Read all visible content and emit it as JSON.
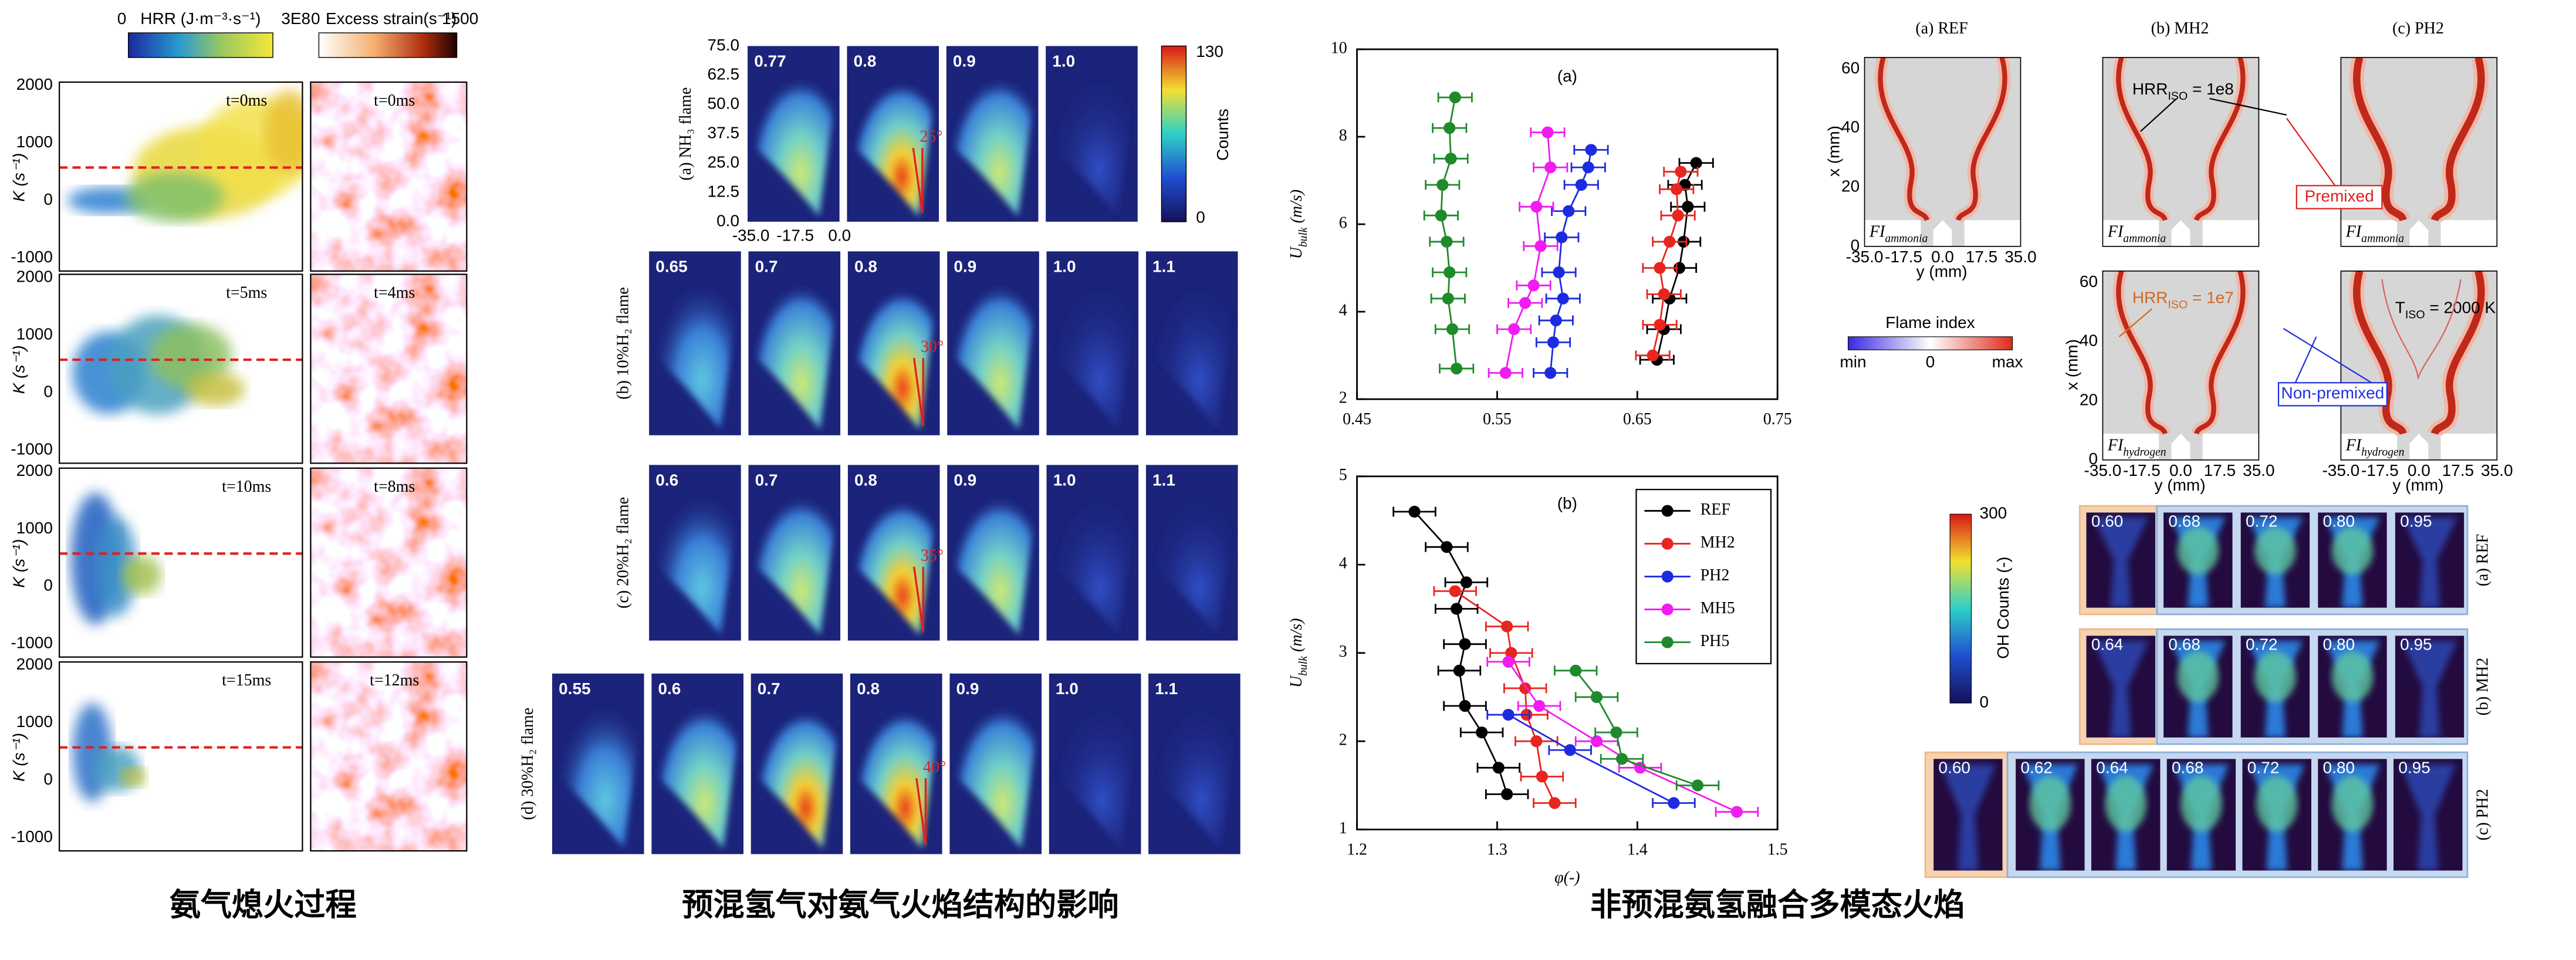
{
  "captions": [
    "氨气熄火过程",
    "预混氢气对氨气火焰结构的影响",
    "非预混氨氢融合多模态火焰"
  ],
  "extinction": {
    "hrr_colorbar": {
      "label": "HRR (J·m⁻³·s⁻¹)",
      "min": "0",
      "max": "3E8"
    },
    "strain_colorbar": {
      "label": "Excess strain(s⁻¹)",
      "min": "0",
      "max": "1500"
    },
    "y_label": "K (s⁻¹)",
    "yticks": [
      "2000",
      "1000",
      "0",
      "-1000"
    ],
    "times_left": [
      "t=0ms",
      "t=5ms",
      "t=10ms",
      "t=15ms"
    ],
    "times_right": [
      "t=0ms",
      "t=4ms",
      "t=8ms",
      "t=12ms"
    ]
  },
  "premixed": {
    "colorbar": {
      "label": "Counts",
      "max": "130",
      "min": "0"
    },
    "axis_yticks": [
      "75.0",
      "62.5",
      "50.0",
      "37.5",
      "25.0",
      "12.5",
      "0.0"
    ],
    "axis_xticks": [
      "-35.0",
      "-17.5",
      "0.0"
    ],
    "rows": [
      {
        "label": "(a)  NH₃ flame",
        "phis": [
          "0.77",
          "0.8",
          "0.9",
          "1.0"
        ],
        "angle": "25°"
      },
      {
        "label": "(b)  10%H₂ flame",
        "phis": [
          "0.65",
          "0.7",
          "0.8",
          "0.9",
          "1.0",
          "1.1"
        ],
        "angle": "30°"
      },
      {
        "label": "(c)  20%H₂ flame",
        "phis": [
          "0.6",
          "0.7",
          "0.8",
          "0.9",
          "1.0",
          "1.1"
        ],
        "angle": "35°"
      },
      {
        "label": "(d)  30%H₂ flame",
        "phis": [
          "0.55",
          "0.6",
          "0.7",
          "0.8",
          "0.9",
          "1.0",
          "1.1"
        ],
        "angle": "40°"
      }
    ]
  },
  "chart_data": [
    {
      "type": "line",
      "title": "(a)",
      "y_label": {
        "main": "U",
        "sub": "bulk",
        "rest": " (m/s)"
      },
      "xlim": [
        0.45,
        0.75
      ],
      "xticks": [
        0.45,
        0.55,
        0.65,
        0.75
      ],
      "ylim": [
        2,
        10
      ],
      "yticks": [
        2,
        4,
        6,
        8,
        10
      ],
      "series": [
        {
          "color": "#000000",
          "xerr": 0.012,
          "x": [
            0.692,
            0.684,
            0.686,
            0.683,
            0.68,
            0.673,
            0.669,
            0.664
          ],
          "values": [
            7.4,
            6.9,
            6.4,
            5.6,
            5.0,
            4.3,
            3.6,
            2.9
          ]
        },
        {
          "color": "#e8251f",
          "xerr": 0.012,
          "x": [
            0.681,
            0.678,
            0.679,
            0.673,
            0.666,
            0.669,
            0.666,
            0.661
          ],
          "values": [
            7.2,
            6.8,
            6.2,
            5.6,
            5.0,
            4.4,
            3.7,
            3.0
          ]
        },
        {
          "color": "#1d2be0",
          "xerr": 0.012,
          "x": [
            0.617,
            0.615,
            0.61,
            0.601,
            0.596,
            0.594,
            0.597,
            0.592,
            0.59,
            0.588
          ],
          "values": [
            7.7,
            7.3,
            6.9,
            6.3,
            5.7,
            4.9,
            4.3,
            3.8,
            3.3,
            2.6
          ]
        },
        {
          "color": "#f01cf0",
          "xerr": 0.012,
          "x": [
            0.586,
            0.588,
            0.578,
            0.581,
            0.576,
            0.57,
            0.562,
            0.556
          ],
          "values": [
            8.1,
            7.3,
            6.4,
            5.5,
            4.6,
            4.2,
            3.6,
            2.6
          ]
        },
        {
          "color": "#1f8a2b",
          "xerr": 0.012,
          "x": [
            0.52,
            0.516,
            0.517,
            0.511,
            0.51,
            0.514,
            0.516,
            0.515,
            0.518,
            0.521
          ],
          "values": [
            8.9,
            8.2,
            7.5,
            6.9,
            6.2,
            5.6,
            4.9,
            4.3,
            3.6,
            2.7
          ]
        }
      ]
    },
    {
      "type": "line",
      "title": "(b)",
      "y_label": {
        "main": "U",
        "sub": "bulk",
        "rest": " (m/s)"
      },
      "x_label": "φ(-)",
      "legend": "upper right",
      "xlim": [
        1.2,
        1.5
      ],
      "xticks": [
        1.2,
        1.3,
        1.4,
        1.5
      ],
      "ylim": [
        1,
        5
      ],
      "yticks": [
        1,
        2,
        3,
        4,
        5
      ],
      "series": [
        {
          "name": "REF",
          "color": "#000000",
          "xerr": 0.015,
          "x": [
            1.241,
            1.264,
            1.278,
            1.271,
            1.277,
            1.273,
            1.277,
            1.289,
            1.301,
            1.307
          ],
          "values": [
            4.6,
            4.2,
            3.8,
            3.5,
            3.1,
            2.8,
            2.4,
            2.1,
            1.7,
            1.4
          ]
        },
        {
          "name": "MH2",
          "color": "#e8251f",
          "xerr": 0.015,
          "x": [
            1.27,
            1.307,
            1.31,
            1.32,
            1.321,
            1.328,
            1.332,
            1.341
          ],
          "values": [
            3.7,
            3.3,
            3.0,
            2.6,
            2.3,
            2.0,
            1.6,
            1.3
          ]
        },
        {
          "name": "PH2",
          "color": "#1d2be0",
          "xerr": 0.015,
          "x": [
            1.308,
            1.352,
            1.426
          ],
          "values": [
            2.3,
            1.9,
            1.3
          ]
        },
        {
          "name": "MH5",
          "color": "#f01cf0",
          "xerr": 0.015,
          "x": [
            1.308,
            1.33,
            1.371,
            1.402,
            1.471
          ],
          "values": [
            2.9,
            2.4,
            2.0,
            1.7,
            1.2
          ]
        },
        {
          "name": "PH5",
          "color": "#1f8a2b",
          "xerr": 0.015,
          "x": [
            1.356,
            1.371,
            1.385,
            1.389,
            1.443
          ],
          "values": [
            2.8,
            2.5,
            2.1,
            1.8,
            1.5
          ]
        }
      ]
    }
  ],
  "nonpremixed": {
    "columns": [
      "(a) REF",
      "(b) MH2",
      "(c) PH2"
    ],
    "y_label": "x (mm)",
    "x_label": "y (mm)",
    "yticks": [
      "0",
      "20",
      "40",
      "60"
    ],
    "xticks": [
      "-35.0",
      "-17.5",
      "0.0",
      "17.5",
      "35.0"
    ],
    "flame_index": {
      "label": "Flame index",
      "min": "min",
      "zero": "0",
      "max": "max"
    },
    "annotations": {
      "hrr_1e8": {
        "main": "HRR",
        "sub": "ISO",
        "rest": " = 1e8"
      },
      "premixed": "Premixed",
      "hrr_1e7": {
        "main": "HRR",
        "sub": "ISO",
        "rest": " = 1e7"
      },
      "t_iso": {
        "main": "T",
        "sub": "ISO",
        "rest": " = 2000 K"
      },
      "non_premixed": "Non-premixed"
    },
    "fi_ammonia": {
      "main": "FI",
      "sub": "ammonia"
    },
    "fi_hydrogen": {
      "main": "FI",
      "sub": "hydrogen"
    }
  },
  "oh": {
    "colorbar": {
      "label": "OH Counts (-)",
      "max": "300",
      "min": "0"
    },
    "rows": [
      {
        "label": "(a) REF",
        "phis": [
          "0.60",
          "0.68",
          "0.72",
          "0.80",
          "0.95"
        ]
      },
      {
        "label": "(b) MH2",
        "phis": [
          "0.64",
          "0.68",
          "0.72",
          "0.80",
          "0.95"
        ]
      },
      {
        "label": "(c) PH2",
        "phis": [
          "0.60",
          "0.62",
          "0.64",
          "0.68",
          "0.72",
          "0.80",
          "0.95"
        ]
      }
    ]
  }
}
